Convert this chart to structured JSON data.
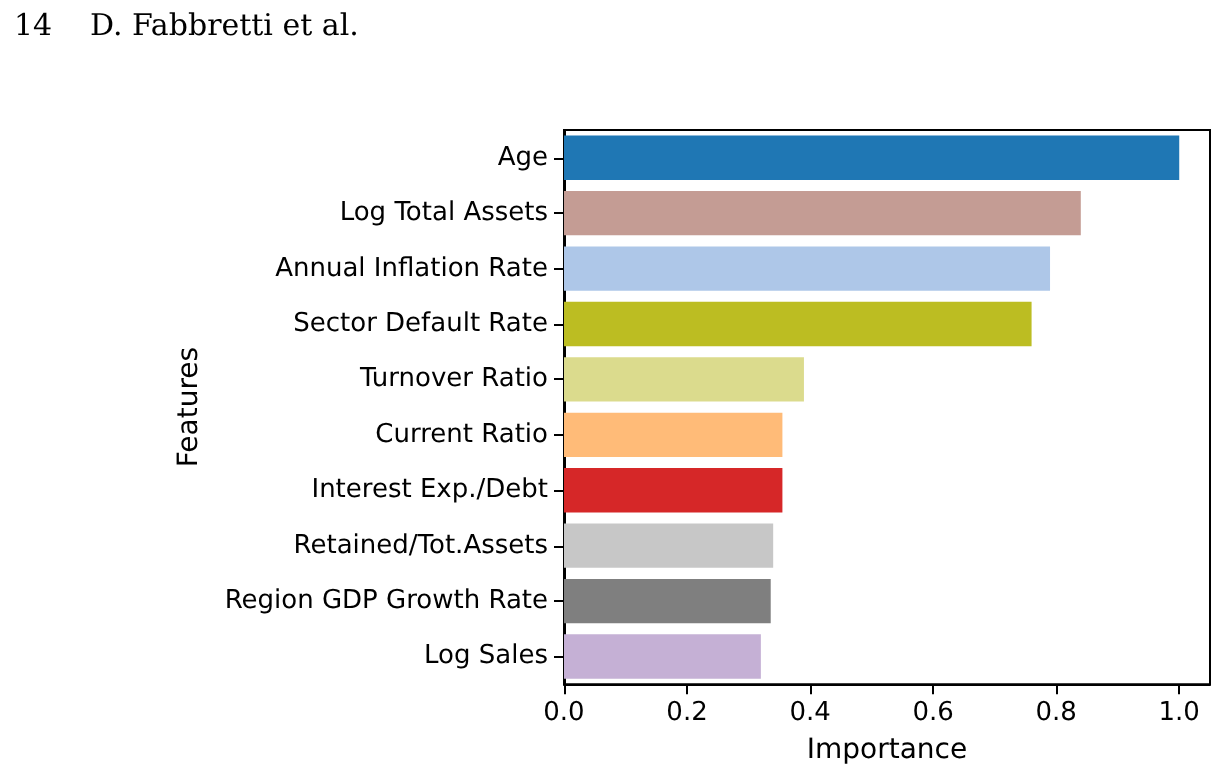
{
  "chart_data": {
    "type": "bar",
    "orientation": "horizontal",
    "xlabel": "Importance",
    "ylabel": "Features",
    "annotations": [
      "14",
      "D. Fabbretti et al."
    ],
    "categories": [
      "Age",
      "Log Total Assets",
      "Annual Inflation Rate",
      "Sector Default Rate",
      "Turnover Ratio",
      "Current Ratio",
      "Interest Exp./Debt",
      "Retained/Tot.Assets",
      "Region GDP Growth Rate",
      "Log Sales"
    ],
    "values": [
      1.0,
      0.84,
      0.79,
      0.76,
      0.39,
      0.355,
      0.355,
      0.34,
      0.336,
      0.32
    ],
    "colors": [
      "#1f77b4",
      "#c49c94",
      "#aec7e8",
      "#bcbd22",
      "#dbdb8d",
      "#ffbb78",
      "#d62728",
      "#c7c7c7",
      "#7f7f7f",
      "#c5b0d5"
    ],
    "xlim": [
      0,
      1.05
    ],
    "xticks": [
      {
        "value": 0,
        "label": "0.0"
      },
      0.2,
      0.4,
      0.6,
      0.8,
      {
        "value": 1,
        "label": "1.0"
      }
    ],
    "grid": false
  }
}
